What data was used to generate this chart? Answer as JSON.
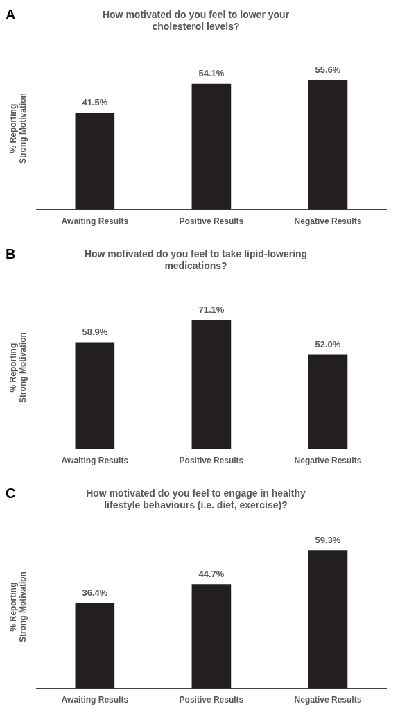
{
  "chart_data": [
    {
      "type": "bar",
      "title": "How motivated do you feel to lower your cholesterol levels?",
      "ylabel": "% Reporting Strong Motivation",
      "annotations": [
        "A"
      ],
      "categories": [
        "Awaiting Results",
        "Positive Results",
        "Negative Results"
      ],
      "values": [
        41.5,
        54.1,
        55.6
      ],
      "color": "#231f20",
      "value_labels": [
        "41.5%",
        "54.1%",
        "55.6%"
      ],
      "tick_labels": "x",
      "grid": false,
      "legend": false
    },
    {
      "type": "bar",
      "title": "How motivated do you feel to take lipid-lowering medications?",
      "ylabel": "% Reporting Strong Motivation",
      "annotations": [
        "B"
      ],
      "categories": [
        "Awaiting Results",
        "Positive Results",
        "Negative Results"
      ],
      "values": [
        58.9,
        71.1,
        52.0
      ],
      "color": "#231f20",
      "value_labels": [
        "58.9%",
        "71.1%",
        "52.0%"
      ],
      "tick_labels": "x",
      "grid": false,
      "legend": false
    },
    {
      "type": "bar",
      "title": "How motivated do you feel to engage in healthy lifestyle behaviours (i.e. diet, exercise)?",
      "ylabel": "% Reporting Strong Motivation",
      "annotations": [
        "C"
      ],
      "categories": [
        "Awaiting Results",
        "Positive Results",
        "Negative Results"
      ],
      "values": [
        36.4,
        44.7,
        59.3
      ],
      "color": "#231f20",
      "value_labels": [
        "36.4%",
        "44.7%",
        "59.3%"
      ],
      "tick_labels": "x",
      "grid": false,
      "legend": false
    }
  ]
}
